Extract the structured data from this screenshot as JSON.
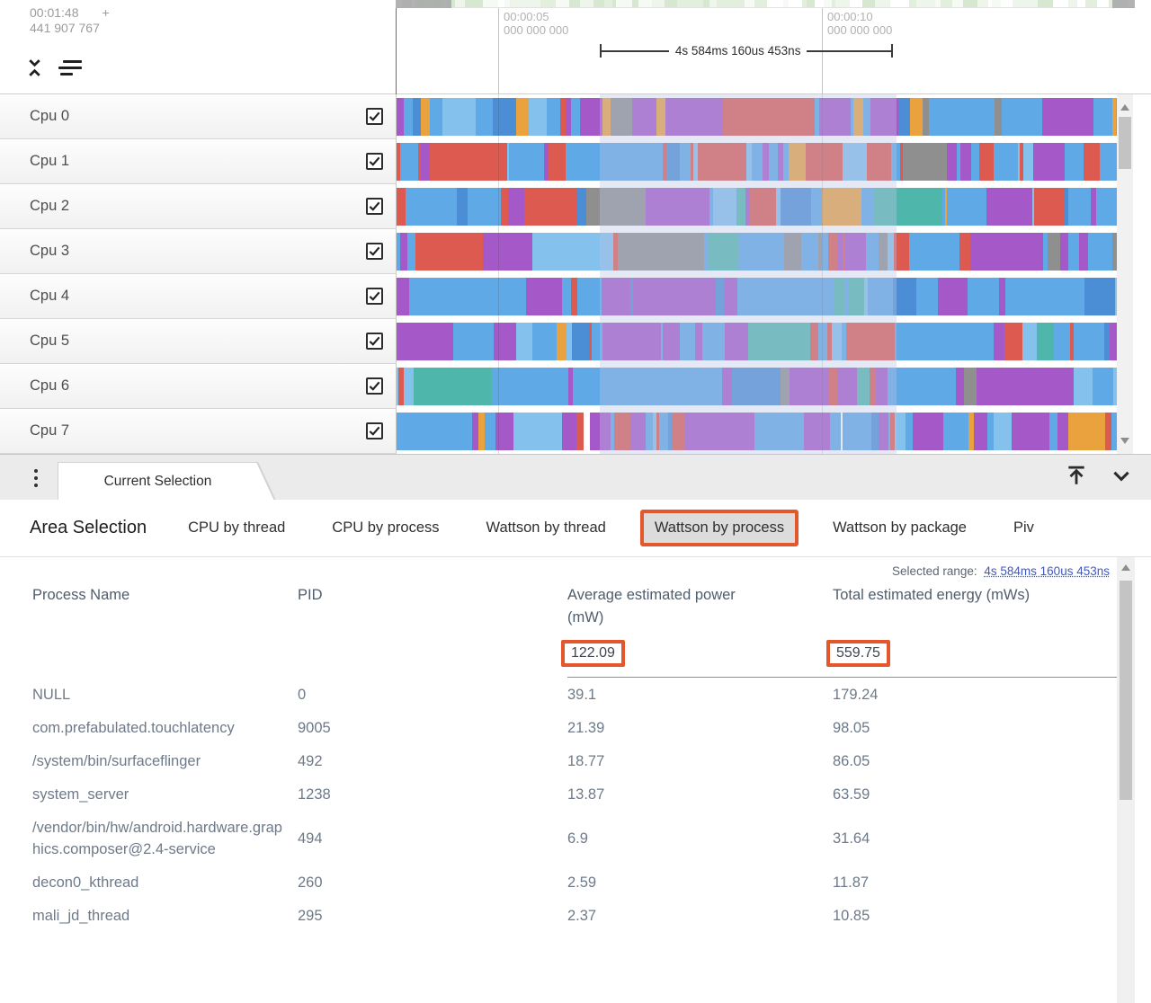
{
  "colors": {
    "annotation": "#e4562c",
    "link": "#3f58c4",
    "blue": "#5ea9e6",
    "lightblue": "#84c1ec",
    "darkblue": "#4b8ed6",
    "purple": "#a558c8",
    "deeppurple": "#9444bc",
    "red": "#dd5a50",
    "orange": "#eaa23e",
    "teal": "#4fb6ab",
    "green": "#8fc768",
    "gray": "#8f8f8f",
    "white": "#ffffff"
  },
  "header": {
    "timestamp": {
      "time": "00:01:48",
      "plus": "+",
      "offset": "441 907 767"
    },
    "ticks": [
      {
        "time": "00:00:05",
        "ns": "000 000 000"
      },
      {
        "time": "00:00:10",
        "ns": "000 000 000"
      }
    ]
  },
  "selection": {
    "duration": "4s 584ms 160us 453ns",
    "range_label": "Selected range:"
  },
  "tracks": {
    "rows": [
      {
        "label": "Cpu 0",
        "checked": true,
        "seed": 11,
        "palette": [
          [
            "#5ea9e6",
            30
          ],
          [
            "#84c1ec",
            14
          ],
          [
            "#4b8ed6",
            8
          ],
          [
            "#a558c8",
            16
          ],
          [
            "#eaa23e",
            14
          ],
          [
            "#dd5a50",
            7
          ],
          [
            "#4fb6ab",
            6
          ],
          [
            "#8fc768",
            2
          ],
          [
            "#8f8f8f",
            3
          ]
        ]
      },
      {
        "label": "Cpu 1",
        "checked": true,
        "seed": 22,
        "palette": [
          [
            "#dd5a50",
            26
          ],
          [
            "#5ea9e6",
            30
          ],
          [
            "#84c1ec",
            8
          ],
          [
            "#a558c8",
            20
          ],
          [
            "#4b8ed6",
            6
          ],
          [
            "#eaa23e",
            4
          ],
          [
            "#4fb6ab",
            3
          ],
          [
            "#8f8f8f",
            3
          ]
        ]
      },
      {
        "label": "Cpu 2",
        "checked": true,
        "seed": 33,
        "palette": [
          [
            "#5ea9e6",
            34
          ],
          [
            "#84c1ec",
            10
          ],
          [
            "#dd5a50",
            22
          ],
          [
            "#a558c8",
            18
          ],
          [
            "#4b8ed6",
            6
          ],
          [
            "#eaa23e",
            4
          ],
          [
            "#4fb6ab",
            4
          ],
          [
            "#8f8f8f",
            2
          ]
        ]
      },
      {
        "label": "Cpu 3",
        "checked": true,
        "seed": 44,
        "palette": [
          [
            "#5ea9e6",
            36
          ],
          [
            "#84c1ec",
            12
          ],
          [
            "#a558c8",
            22
          ],
          [
            "#8f8f8f",
            12
          ],
          [
            "#dd5a50",
            6
          ],
          [
            "#4b8ed6",
            6
          ],
          [
            "#eaa23e",
            3
          ],
          [
            "#4fb6ab",
            3
          ]
        ]
      },
      {
        "label": "Cpu 4",
        "checked": true,
        "seed": 55,
        "palette": [
          [
            "#5ea9e6",
            42
          ],
          [
            "#84c1ec",
            14
          ],
          [
            "#a558c8",
            22
          ],
          [
            "#4b8ed6",
            8
          ],
          [
            "#dd5a50",
            5
          ],
          [
            "#eaa23e",
            4
          ],
          [
            "#4fb6ab",
            3
          ],
          [
            "#ffffff",
            2
          ]
        ]
      },
      {
        "label": "Cpu 5",
        "checked": true,
        "seed": 66,
        "palette": [
          [
            "#a558c8",
            30
          ],
          [
            "#5ea9e6",
            30
          ],
          [
            "#84c1ec",
            10
          ],
          [
            "#dd5a50",
            9
          ],
          [
            "#eaa23e",
            6
          ],
          [
            "#ffffff",
            6
          ],
          [
            "#4b8ed6",
            5
          ],
          [
            "#4fb6ab",
            4
          ]
        ]
      },
      {
        "label": "Cpu 6",
        "checked": true,
        "seed": 77,
        "palette": [
          [
            "#a558c8",
            38
          ],
          [
            "#5ea9e6",
            28
          ],
          [
            "#84c1ec",
            8
          ],
          [
            "#8f8f8f",
            7
          ],
          [
            "#4b8ed6",
            7
          ],
          [
            "#dd5a50",
            5
          ],
          [
            "#eaa23e",
            4
          ],
          [
            "#4fb6ab",
            3
          ]
        ]
      },
      {
        "label": "Cpu 7",
        "checked": true,
        "seed": 88,
        "palette": [
          [
            "#a558c8",
            34
          ],
          [
            "#5ea9e6",
            26
          ],
          [
            "#84c1ec",
            8
          ],
          [
            "#dd5a50",
            14
          ],
          [
            "#eaa23e",
            6
          ],
          [
            "#ffffff",
            5
          ],
          [
            "#4b8ed6",
            7
          ]
        ]
      }
    ]
  },
  "panel": {
    "tab_label": "Current Selection",
    "title": "Area Selection",
    "tabs": [
      "CPU by thread",
      "CPU by process",
      "Wattson by thread",
      "Wattson by process",
      "Wattson by package",
      "Piv"
    ],
    "selected_tab_index": 3
  },
  "table": {
    "columns": [
      "Process Name",
      "PID",
      "Average estimated power (mW)",
      "Total estimated energy (mWs)"
    ],
    "summary": {
      "power": "122.09",
      "energy": "559.75"
    },
    "rows": [
      [
        "NULL",
        "0",
        "39.1",
        "179.24"
      ],
      [
        "com.prefabulated.touchlatency",
        "9005",
        "21.39",
        "98.05"
      ],
      [
        "/system/bin/surfaceflinger",
        "492",
        "18.77",
        "86.05"
      ],
      [
        "system_server",
        "1238",
        "13.87",
        "63.59"
      ],
      [
        "/vendor/bin/hw/android.hardware.graphics.composer@2.4-service",
        "494",
        "6.9",
        "31.64"
      ],
      [
        "decon0_kthread",
        "260",
        "2.59",
        "11.87"
      ],
      [
        "mali_jd_thread",
        "295",
        "2.37",
        "10.85"
      ]
    ]
  }
}
